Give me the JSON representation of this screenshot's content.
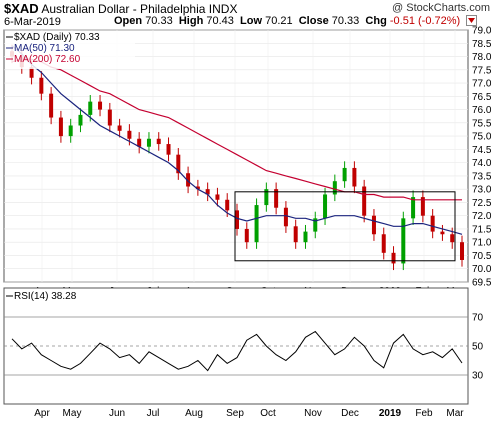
{
  "header": {
    "symbol": "$XAD",
    "name": "Australian Dollar - Philadelphia",
    "exchange": "INDX",
    "brand": "@ StockCharts.com",
    "date": "6-Mar-2019",
    "open_label": "Open",
    "open": "70.33",
    "high_label": "High",
    "high": "70.43",
    "low_label": "Low",
    "low": "70.21",
    "close_label": "Close",
    "close": "70.33",
    "chg_label": "Chg",
    "chg": "-0.51 (-0.72%)"
  },
  "legend": {
    "price": "$XAD (Daily) 70.33",
    "ma50": "MA(50) 71.30",
    "ma200": "MA(200) 72.60",
    "rsi": "RSI(14) 38.28"
  },
  "colors": {
    "price": "#000000",
    "up": "#00a000",
    "down": "#c00000",
    "ma50": "#1a237e",
    "ma200": "#c40030",
    "box": "#000000",
    "rsi": "#000000"
  },
  "chart_data": [
    {
      "type": "candlestick",
      "title": "$XAD Australian Dollar - Philadelphia INDX",
      "ylim": [
        69.5,
        79.0
      ],
      "y_ticks": [
        "69.5",
        "70.0",
        "70.5",
        "71.0",
        "71.5",
        "72.0",
        "72.5",
        "73.0",
        "73.5",
        "74.0",
        "74.5",
        "75.0",
        "75.5",
        "76.0",
        "76.5",
        "77.0",
        "77.5",
        "78.0",
        "78.5",
        "79.0"
      ],
      "x_ticks": [
        "Apr",
        "May",
        "Jun",
        "Jul",
        "Aug",
        "Sep",
        "Oct",
        "Nov",
        "Dec",
        "2019",
        "Feb",
        "Mar"
      ],
      "price_close": [
        78.0,
        77.6,
        77.2,
        76.6,
        75.7,
        75.0,
        75.4,
        75.8,
        76.3,
        76.0,
        75.4,
        75.2,
        74.9,
        74.6,
        74.9,
        74.7,
        74.3,
        73.6,
        73.1,
        73.0,
        72.8,
        72.6,
        72.2,
        71.5,
        71.0,
        72.4,
        73.0,
        72.3,
        71.6,
        71.0,
        71.4,
        71.9,
        72.8,
        73.3,
        73.8,
        73.1,
        72.0,
        71.3,
        70.6,
        70.2,
        71.9,
        72.7,
        72.0,
        71.4,
        71.3,
        71.0,
        70.33
      ],
      "ma50": [
        78.4,
        78.1,
        77.7,
        77.4,
        77.0,
        76.6,
        76.3,
        76.0,
        75.7,
        75.4,
        75.2,
        75.0,
        74.8,
        74.6,
        74.4,
        74.2,
        74.0,
        73.7,
        73.3,
        73.0,
        72.8,
        72.4,
        72.1,
        71.9,
        71.8,
        71.9,
        72.0,
        72.0,
        72.0,
        71.9,
        71.9,
        71.8,
        71.9,
        72.0,
        72.0,
        72.0,
        71.9,
        71.8,
        71.7,
        71.6,
        71.6,
        71.7,
        71.7,
        71.6,
        71.5,
        71.4,
        71.3
      ],
      "ma200": [
        77.8,
        77.9,
        77.9,
        77.8,
        77.6,
        77.5,
        77.3,
        77.1,
        76.9,
        76.7,
        76.6,
        76.4,
        76.2,
        76.0,
        75.9,
        75.8,
        75.7,
        75.5,
        75.3,
        75.1,
        74.9,
        74.7,
        74.5,
        74.3,
        74.1,
        73.9,
        73.7,
        73.6,
        73.5,
        73.4,
        73.3,
        73.2,
        73.1,
        73.0,
        72.9,
        72.9,
        72.8,
        72.8,
        72.7,
        72.7,
        72.7,
        72.6,
        72.6,
        72.6,
        72.6,
        72.6,
        72.6
      ],
      "range_box": {
        "x_start": "Sep",
        "x_end": "Mar",
        "y_low": 70.3,
        "y_high": 72.9
      }
    },
    {
      "type": "line",
      "title": "RSI(14) 38.28",
      "ylim": [
        10,
        90
      ],
      "y_ticks": [
        "30",
        "50",
        "70"
      ],
      "reference_lines": [
        30,
        50,
        70
      ],
      "x_ticks": [
        "Apr",
        "May",
        "Jun",
        "Jul",
        "Aug",
        "Sep",
        "Oct",
        "Nov",
        "Dec",
        "2019",
        "Feb",
        "Mar"
      ],
      "values": [
        55,
        48,
        52,
        44,
        40,
        36,
        34,
        38,
        45,
        52,
        48,
        42,
        44,
        38,
        46,
        42,
        38,
        34,
        36,
        40,
        33,
        44,
        38,
        42,
        54,
        58,
        50,
        44,
        40,
        46,
        56,
        60,
        52,
        44,
        48,
        56,
        50,
        40,
        35,
        52,
        58,
        48,
        44,
        46,
        42,
        48,
        38.28
      ]
    }
  ]
}
